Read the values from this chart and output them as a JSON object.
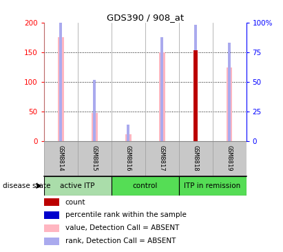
{
  "title": "GDS390 / 908_at",
  "samples": [
    "GSM8814",
    "GSM8815",
    "GSM8816",
    "GSM8817",
    "GSM8818",
    "GSM8819"
  ],
  "pink_values": [
    175,
    48,
    12,
    150,
    0,
    124
  ],
  "blue_rank_values": [
    108,
    52,
    14,
    88,
    98,
    83
  ],
  "red_count_values": [
    0,
    0,
    0,
    0,
    153,
    0
  ],
  "has_red": [
    false,
    false,
    false,
    false,
    true,
    false
  ],
  "has_pink": [
    true,
    true,
    true,
    true,
    false,
    true
  ],
  "has_blue": [
    true,
    true,
    true,
    true,
    true,
    true
  ],
  "ylim_left": [
    0,
    200
  ],
  "ylim_right": [
    0,
    100
  ],
  "yticks_left": [
    0,
    50,
    100,
    150,
    200
  ],
  "yticks_right": [
    0,
    25,
    50,
    75,
    100
  ],
  "ytick_labels_right": [
    "0",
    "25",
    "50",
    "75",
    "100%"
  ],
  "grid_lines": [
    50,
    100,
    150
  ],
  "pink_color": "#ffb6c1",
  "blue_color": "#aaaaee",
  "blue_dot_color": "#0000cc",
  "red_color": "#bb0000",
  "pink_bar_width": 0.18,
  "blue_bar_width": 0.08,
  "red_bar_width": 0.12,
  "group_colors": [
    "#90ee90",
    "#4dcc4d",
    "#4dcc4d"
  ],
  "group_data": [
    [
      0,
      2,
      "#aaddaa",
      "active ITP"
    ],
    [
      2,
      4,
      "#44cc44",
      "control"
    ],
    [
      4,
      6,
      "#44cc44",
      "ITP in remission"
    ]
  ],
  "bg_color": "#c8c8c8",
  "plot_bg": "#ffffff",
  "legend_items": [
    [
      "#bb0000",
      "count"
    ],
    [
      "#0000cc",
      "percentile rank within the sample"
    ],
    [
      "#ffb6c1",
      "value, Detection Call = ABSENT"
    ],
    [
      "#aaaaee",
      "rank, Detection Call = ABSENT"
    ]
  ]
}
